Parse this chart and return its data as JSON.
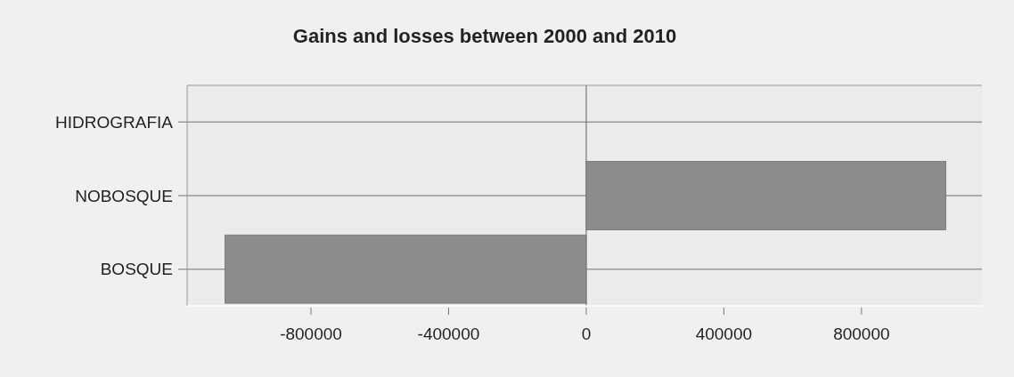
{
  "chart_data": {
    "type": "bar",
    "orientation": "horizontal",
    "title": "Gains and losses between 2000 and 2010",
    "categories": [
      "HIDROGRAFIA",
      "NOBOSQUE",
      "BOSQUE"
    ],
    "values": [
      0,
      1045000,
      -1050000
    ],
    "color": "#8c8c8c",
    "xlim": [
      -1160000,
      1150000
    ],
    "xticks": [
      -800000,
      -400000,
      0,
      400000,
      800000
    ],
    "ref_lines": [
      {
        "axis": "x",
        "value": 0,
        "color": "#777777"
      }
    ],
    "grid": "y"
  }
}
